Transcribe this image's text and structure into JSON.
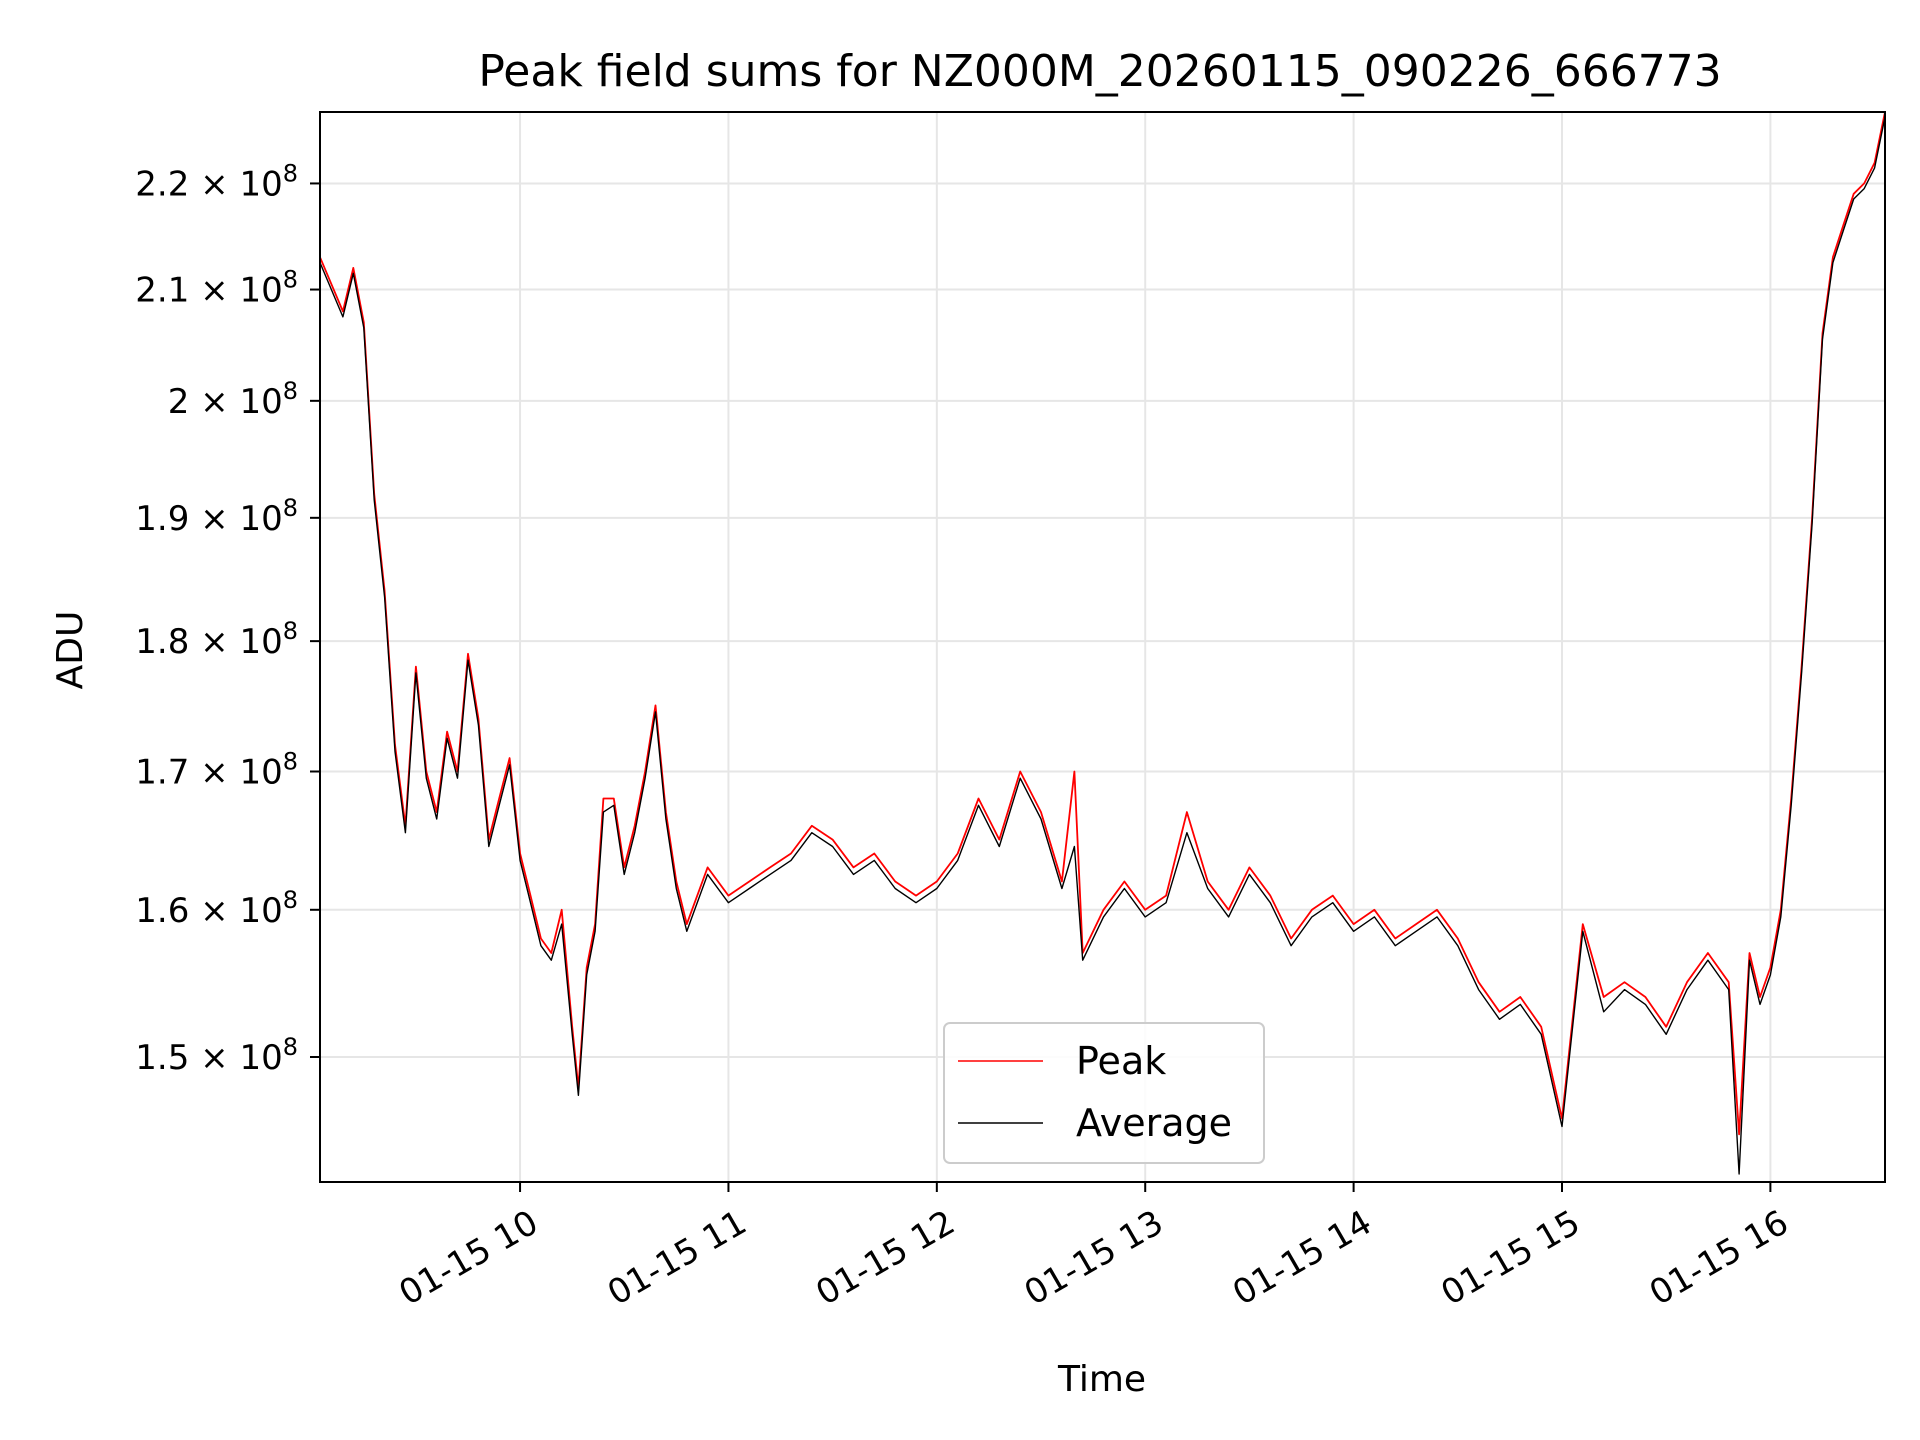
{
  "chart_data": {
    "type": "line",
    "title": "Peak field sums for NZ000M_20260115_090226_666773",
    "xlabel": "Time",
    "ylabel": "ADU",
    "yscale": "log",
    "grid": true,
    "legend_position": "lower-center",
    "xlim_hours": [
      9.04,
      16.55
    ],
    "ylim": [
      142000000,
      227000000
    ],
    "x_ticks": [
      {
        "hour": 10,
        "label": "01-15 10"
      },
      {
        "hour": 11,
        "label": "01-15 11"
      },
      {
        "hour": 12,
        "label": "01-15 12"
      },
      {
        "hour": 13,
        "label": "01-15 13"
      },
      {
        "hour": 14,
        "label": "01-15 14"
      },
      {
        "hour": 15,
        "label": "01-15 15"
      },
      {
        "hour": 16,
        "label": "01-15 16"
      }
    ],
    "y_ticks": [
      {
        "value": 150000000,
        "mantissa": "1.5",
        "exp": "8"
      },
      {
        "value": 160000000,
        "mantissa": "1.6",
        "exp": "8"
      },
      {
        "value": 170000000,
        "mantissa": "1.7",
        "exp": "8"
      },
      {
        "value": 180000000,
        "mantissa": "1.8",
        "exp": "8"
      },
      {
        "value": 190000000,
        "mantissa": "1.9",
        "exp": "8"
      },
      {
        "value": 200000000,
        "mantissa": "2",
        "exp": "8"
      },
      {
        "value": 210000000,
        "mantissa": "2.1",
        "exp": "8"
      },
      {
        "value": 220000000,
        "mantissa": "2.2",
        "exp": "8"
      }
    ],
    "series": [
      {
        "name": "Peak",
        "color": "#ff0000",
        "x_hours": [
          9.04,
          9.15,
          9.2,
          9.25,
          9.3,
          9.35,
          9.4,
          9.45,
          9.5,
          9.55,
          9.6,
          9.65,
          9.7,
          9.75,
          9.8,
          9.85,
          9.9,
          9.95,
          10.0,
          10.05,
          10.1,
          10.15,
          10.2,
          10.25,
          10.28,
          10.32,
          10.36,
          10.4,
          10.45,
          10.5,
          10.55,
          10.6,
          10.65,
          10.7,
          10.75,
          10.8,
          10.9,
          11.0,
          11.1,
          11.2,
          11.3,
          11.4,
          11.5,
          11.6,
          11.7,
          11.8,
          11.9,
          12.0,
          12.1,
          12.2,
          12.3,
          12.4,
          12.5,
          12.6,
          12.66,
          12.7,
          12.8,
          12.9,
          13.0,
          13.1,
          13.2,
          13.3,
          13.4,
          13.5,
          13.6,
          13.7,
          13.8,
          13.9,
          14.0,
          14.1,
          14.2,
          14.3,
          14.4,
          14.5,
          14.6,
          14.7,
          14.8,
          14.9,
          15.0,
          15.1,
          15.2,
          15.3,
          15.4,
          15.5,
          15.6,
          15.7,
          15.8,
          15.85,
          15.9,
          15.95,
          16.0,
          16.05,
          16.1,
          16.15,
          16.2,
          16.25,
          16.3,
          16.35,
          16.4,
          16.45,
          16.5,
          16.55
        ],
        "values": [
          213000000,
          208000000,
          212000000,
          207000000,
          192000000,
          184000000,
          172000000,
          166000000,
          178000000,
          170000000,
          167000000,
          173000000,
          170000000,
          179000000,
          174000000,
          165000000,
          168000000,
          171000000,
          164000000,
          161000000,
          158000000,
          157000000,
          160000000,
          152000000,
          148000000,
          156000000,
          159000000,
          168000000,
          168000000,
          163000000,
          166000000,
          170000000,
          175000000,
          167000000,
          162000000,
          159000000,
          163000000,
          161000000,
          162000000,
          163000000,
          164000000,
          166000000,
          165000000,
          163000000,
          164000000,
          162000000,
          161000000,
          162000000,
          164000000,
          168000000,
          165000000,
          170000000,
          167000000,
          162000000,
          170000000,
          157000000,
          160000000,
          162000000,
          160000000,
          161000000,
          167000000,
          162000000,
          160000000,
          163000000,
          161000000,
          158000000,
          160000000,
          161000000,
          159000000,
          160000000,
          158000000,
          159000000,
          160000000,
          158000000,
          155000000,
          153000000,
          154000000,
          152000000,
          146000000,
          159000000,
          154000000,
          155000000,
          154000000,
          152000000,
          155000000,
          157000000,
          155000000,
          145000000,
          157000000,
          154000000,
          156000000,
          160000000,
          168000000,
          178000000,
          190000000,
          206000000,
          213000000,
          216000000,
          219000000,
          220000000,
          222000000,
          227000000
        ]
      },
      {
        "name": "Average",
        "color": "#000000",
        "x_hours": [
          9.04,
          9.15,
          9.2,
          9.25,
          9.3,
          9.35,
          9.4,
          9.45,
          9.5,
          9.55,
          9.6,
          9.65,
          9.7,
          9.75,
          9.8,
          9.85,
          9.9,
          9.95,
          10.0,
          10.05,
          10.1,
          10.15,
          10.2,
          10.25,
          10.28,
          10.32,
          10.36,
          10.4,
          10.45,
          10.5,
          10.55,
          10.6,
          10.65,
          10.7,
          10.75,
          10.8,
          10.9,
          11.0,
          11.1,
          11.2,
          11.3,
          11.4,
          11.5,
          11.6,
          11.7,
          11.8,
          11.9,
          12.0,
          12.1,
          12.2,
          12.3,
          12.4,
          12.5,
          12.6,
          12.66,
          12.7,
          12.8,
          12.9,
          13.0,
          13.1,
          13.2,
          13.3,
          13.4,
          13.5,
          13.6,
          13.7,
          13.8,
          13.9,
          14.0,
          14.1,
          14.2,
          14.3,
          14.4,
          14.5,
          14.6,
          14.7,
          14.8,
          14.9,
          15.0,
          15.1,
          15.2,
          15.3,
          15.4,
          15.5,
          15.6,
          15.7,
          15.8,
          15.85,
          15.9,
          15.95,
          16.0,
          16.05,
          16.1,
          16.15,
          16.2,
          16.25,
          16.3,
          16.35,
          16.4,
          16.45,
          16.5,
          16.55
        ],
        "values": [
          212500000,
          207500000,
          211500000,
          206500000,
          191500000,
          183500000,
          171500000,
          165500000,
          177500000,
          169500000,
          166500000,
          172500000,
          169500000,
          178500000,
          173500000,
          164500000,
          167500000,
          170500000,
          163500000,
          160500000,
          157500000,
          156500000,
          159000000,
          151500000,
          147500000,
          155500000,
          158500000,
          167000000,
          167500000,
          162500000,
          165500000,
          169500000,
          174500000,
          166500000,
          161500000,
          158500000,
          162500000,
          160500000,
          161500000,
          162500000,
          163500000,
          165500000,
          164500000,
          162500000,
          163500000,
          161500000,
          160500000,
          161500000,
          163500000,
          167500000,
          164500000,
          169500000,
          166500000,
          161500000,
          164500000,
          156500000,
          159500000,
          161500000,
          159500000,
          160500000,
          165500000,
          161500000,
          159500000,
          162500000,
          160500000,
          157500000,
          159500000,
          160500000,
          158500000,
          159500000,
          157500000,
          158500000,
          159500000,
          157500000,
          154500000,
          152500000,
          153500000,
          151500000,
          145500000,
          158500000,
          153000000,
          154500000,
          153500000,
          151500000,
          154500000,
          156500000,
          154500000,
          142500000,
          156500000,
          153500000,
          155500000,
          159500000,
          167500000,
          177500000,
          189500000,
          205500000,
          212500000,
          215500000,
          218500000,
          219500000,
          221500000,
          226500000
        ]
      }
    ]
  }
}
